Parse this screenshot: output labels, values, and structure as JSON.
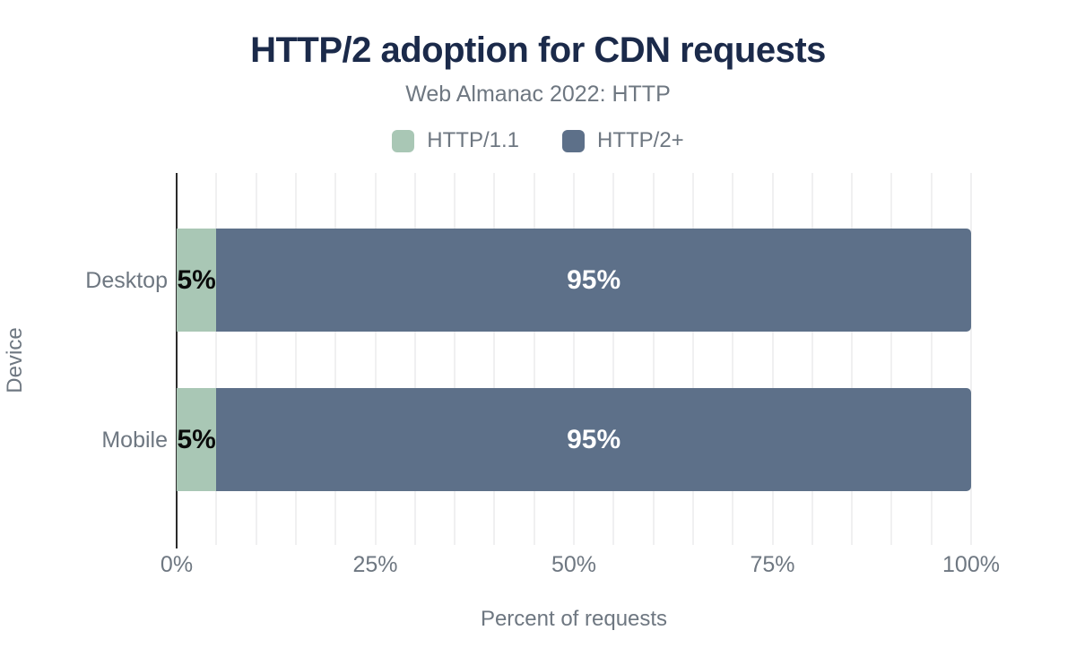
{
  "chart": {
    "title": "HTTP/2 adoption for CDN requests",
    "subtitle": "Web Almanac 2022: HTTP",
    "x_axis_title": "Percent of requests",
    "y_axis_title": "Device"
  },
  "colors": {
    "title_navy": "#1b2a4a",
    "muted_text": "#6e7781",
    "http11_green": "#a9c7b5",
    "http2_slate": "#5d7089",
    "bar_label_dark": "#0a0a0a",
    "bar_label_light": "#ffffff",
    "gridline": "#f0f0f1",
    "axis_line": "#2b2b2b"
  },
  "chart_data": {
    "type": "bar",
    "orientation": "horizontal",
    "stacked": true,
    "title": "HTTP/2 adoption for CDN requests",
    "subtitle": "Web Almanac 2022: HTTP",
    "xlabel": "Percent of requests",
    "ylabel": "Device",
    "categories": [
      "Desktop",
      "Mobile"
    ],
    "series": [
      {
        "name": "HTTP/1.1",
        "color": "#a9c7b5",
        "values": [
          5,
          5
        ],
        "label_style": "dark"
      },
      {
        "name": "HTTP/2+",
        "color": "#5d7089",
        "values": [
          95,
          95
        ],
        "label_style": "light"
      }
    ],
    "data_labels": [
      [
        "5%",
        "95%"
      ],
      [
        "5%",
        "95%"
      ]
    ],
    "xlim": [
      0,
      100
    ],
    "xticks": [
      0,
      25,
      50,
      75,
      100
    ],
    "xtick_labels": [
      "0%",
      "25%",
      "50%",
      "75%",
      "100%"
    ],
    "grid": {
      "vertical_minor_step_pct": 5,
      "horizontal": false
    },
    "legend_position": "top-center"
  }
}
